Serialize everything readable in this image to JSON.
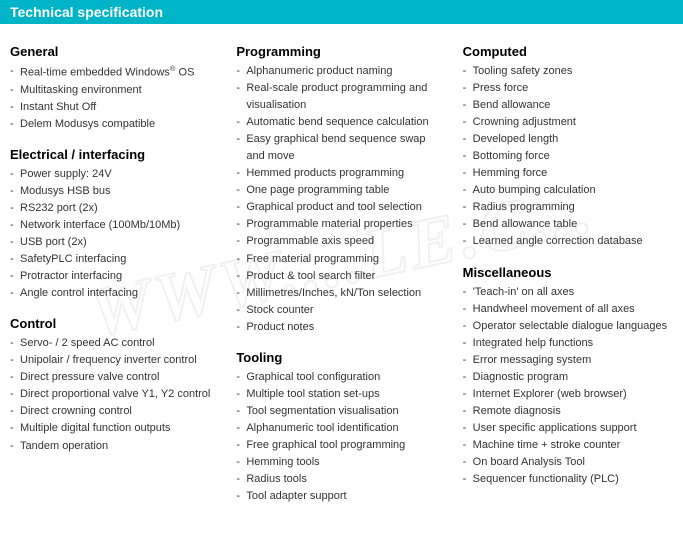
{
  "header": {
    "title": "Technical specification",
    "bg_color": "#00b4c8",
    "text_color": "#ffffff"
  },
  "watermark_text": "WWW....LE.C...",
  "columns": [
    {
      "sections": [
        {
          "title": "General",
          "items": [
            "Real-time embedded Windows® OS",
            "Multitasking environment",
            "Instant Shut Off",
            "Delem Modusys compatible"
          ]
        },
        {
          "title": "Electrical / interfacing",
          "items": [
            "Power supply: 24V",
            "Modusys HSB bus",
            "RS232 port (2x)",
            "Network interface (100Mb/10Mb)",
            "USB port (2x)",
            "SafetyPLC interfacing",
            "Protractor interfacing",
            "Angle control interfacing"
          ]
        },
        {
          "title": "Control",
          "items": [
            "Servo- / 2 speed AC control",
            "Unipolair / frequency inverter control",
            "Direct pressure valve control",
            "Direct proportional valve Y1, Y2 control",
            "Direct crowning control",
            "Multiple digital function outputs",
            "Tandem operation"
          ]
        }
      ]
    },
    {
      "sections": [
        {
          "title": "Programming",
          "items": [
            "Alphanumeric product naming",
            "Real-scale product programming and visualisation",
            "Automatic bend sequence calculation",
            "Easy graphical bend sequence swap and move",
            "Hemmed products programming",
            "One page programming table",
            "Graphical product and tool selection",
            "Programmable material properties",
            "Programmable axis speed",
            "Free material programming",
            "Product & tool search filter",
            "Millimetres/Inches, kN/Ton selection",
            "Stock counter",
            "Product notes"
          ]
        },
        {
          "title": "Tooling",
          "items": [
            "Graphical tool configuration",
            "Multiple tool station set-ups",
            "Tool segmentation visualisation",
            "Alphanumeric tool identification",
            "Free graphical tool programming",
            "Hemming tools",
            "Radius tools",
            "Tool adapter support"
          ]
        }
      ]
    },
    {
      "sections": [
        {
          "title": "Computed",
          "items": [
            "Tooling safety zones",
            "Press force",
            "Bend allowance",
            "Crowning adjustment",
            "Developed length",
            "Bottoming force",
            "Hemming force",
            "Auto bumping calculation",
            "Radius programming",
            "Bend allowance table",
            "Learned angle correction database"
          ]
        },
        {
          "title": "Miscellaneous",
          "items": [
            "'Teach-in' on all axes",
            "Handwheel movement of all axes",
            "Operator selectable dialogue languages",
            "Integrated help functions",
            "Error messaging system",
            "Diagnostic program",
            "Internet Explorer (web browser)",
            "Remote diagnosis",
            "User specific applications support",
            "Machine time + stroke counter",
            "On board Analysis Tool",
            "Sequencer functionality (PLC)"
          ]
        }
      ]
    }
  ]
}
